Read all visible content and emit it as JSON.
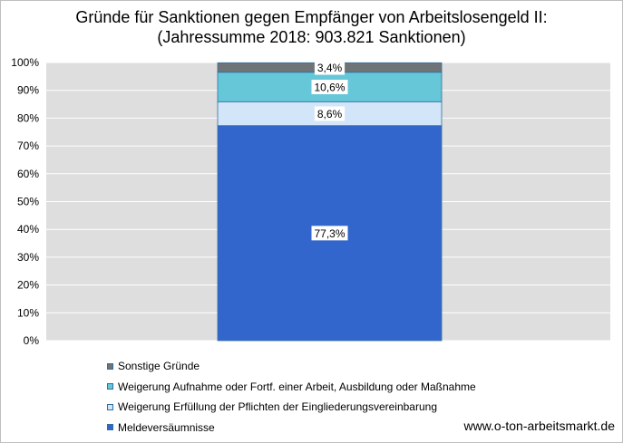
{
  "chart_data": {
    "type": "bar",
    "stacked": true,
    "title": "Gründe für Sanktionen gegen Empfänger von Arbeitslosengeld II:",
    "subtitle": "(Jahressumme 2018: 903.821 Sanktionen)",
    "categories": [
      ""
    ],
    "ylim": [
      0,
      100
    ],
    "yticks": [
      0,
      10,
      20,
      30,
      40,
      50,
      60,
      70,
      80,
      90,
      100
    ],
    "ytick_labels": [
      "0%",
      "10%",
      "20%",
      "30%",
      "40%",
      "50%",
      "60%",
      "70%",
      "80%",
      "90%",
      "100%"
    ],
    "series": [
      {
        "name": "Meldeversäumnisse",
        "values": [
          77.3
        ],
        "label": "77,3%",
        "color": "#3366cc"
      },
      {
        "name": "Weigerung Erfüllung der Pflichten der Eingliederungsvereinbarung",
        "values": [
          8.6
        ],
        "label": "8,6%",
        "color": "#d3e5f8"
      },
      {
        "name": "Weigerung Aufnahme oder Fortf. einer Arbeit, Ausbildung oder Maßnahme",
        "values": [
          10.6
        ],
        "label": "10,6%",
        "color": "#66c7d9"
      },
      {
        "name": "Sonstige Gründe",
        "values": [
          3.4
        ],
        "label": "3,4%",
        "color": "#6f7478"
      }
    ],
    "legend_order": [
      3,
      2,
      1,
      0
    ],
    "legend_position": "bottom-left",
    "grid": true
  },
  "source": "www.o-ton-arbeitsmarkt.de"
}
